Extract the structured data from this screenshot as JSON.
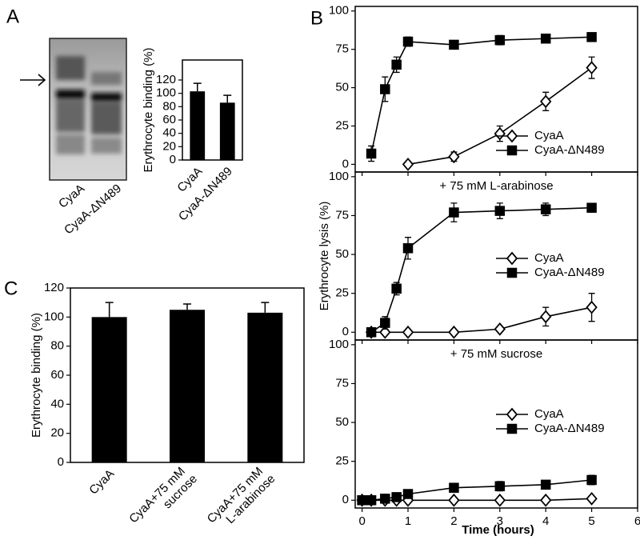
{
  "panel_labels": [
    "A",
    "B",
    "C"
  ],
  "blot": {
    "lanes": [
      "CyaA",
      "CyaA-ΔN489"
    ]
  },
  "chart_data": [
    {
      "type": "bar",
      "ylabel": "Erythrocyte binding (%)",
      "categories": [
        "CyaA",
        "CyaA-ΔN489"
      ],
      "values": [
        103,
        86
      ],
      "errors": [
        12,
        11
      ],
      "color": "#000000",
      "ylim": [
        0,
        150
      ],
      "yticks": [
        0,
        20,
        40,
        60,
        80,
        100,
        120
      ]
    },
    {
      "type": "line",
      "xlim": [
        -0.15,
        6
      ],
      "ylim": [
        -5,
        103
      ],
      "yticks": [
        0,
        25,
        50,
        75,
        100
      ],
      "series": [
        {
          "name": "CyaA",
          "color": "#000000",
          "marker": "diamond",
          "filled": false,
          "x": [
            1,
            2,
            3,
            4,
            5
          ],
          "values": [
            0,
            5,
            20,
            41,
            63
          ],
          "errors": [
            0,
            3,
            5,
            6,
            7
          ]
        },
        {
          "name": "CyaA-ΔN489",
          "color": "#000000",
          "marker": "square",
          "filled": true,
          "x": [
            0.2,
            0.5,
            0.75,
            1,
            2,
            3,
            4,
            5
          ],
          "values": [
            7,
            49,
            65,
            80,
            78,
            81,
            82,
            83
          ],
          "errors": [
            5,
            8,
            5,
            3,
            2,
            3,
            2,
            2
          ]
        }
      ]
    },
    {
      "type": "line",
      "annotation": "+ 75 mM L-arabinose",
      "ylabel": "Erythrocyte lysis (%)",
      "xlim": [
        -0.15,
        6
      ],
      "ylim": [
        -5,
        103
      ],
      "yticks": [
        0,
        25,
        50,
        75,
        100
      ],
      "series": [
        {
          "name": "CyaA",
          "color": "#000000",
          "marker": "diamond",
          "filled": false,
          "x": [
            0.2,
            0.5,
            1,
            2,
            3,
            4,
            5
          ],
          "values": [
            0,
            0,
            0,
            0,
            2,
            10,
            16
          ],
          "errors": [
            0,
            0,
            0,
            0,
            1,
            6,
            9
          ]
        },
        {
          "name": "CyaA-ΔN489",
          "color": "#000000",
          "marker": "square",
          "filled": true,
          "x": [
            0.2,
            0.5,
            0.75,
            1,
            2,
            3,
            4,
            5
          ],
          "values": [
            0,
            6,
            28,
            54,
            77,
            78,
            79,
            80
          ],
          "errors": [
            2,
            4,
            4,
            7,
            6,
            5,
            4,
            2
          ]
        }
      ]
    },
    {
      "type": "line",
      "annotation": "+ 75 mM sucrose",
      "xlabel": "Time (hours)",
      "xlim": [
        -0.15,
        6
      ],
      "ylim": [
        -5,
        103
      ],
      "xticks": [
        0,
        1,
        2,
        3,
        4,
        5,
        6
      ],
      "yticks": [
        0,
        25,
        50,
        75,
        100
      ],
      "series": [
        {
          "name": "CyaA",
          "color": "#000000",
          "marker": "diamond",
          "filled": false,
          "x": [
            0,
            0.2,
            0.5,
            0.75,
            1,
            2,
            3,
            4,
            5
          ],
          "values": [
            0,
            0,
            0,
            0,
            0,
            0,
            0,
            0,
            1
          ],
          "errors": [
            0,
            0,
            0,
            0,
            0,
            0,
            0,
            0,
            0
          ]
        },
        {
          "name": "CyaA-ΔN489",
          "color": "#000000",
          "marker": "square",
          "filled": true,
          "x": [
            0,
            0.2,
            0.5,
            0.75,
            1,
            2,
            3,
            4,
            5
          ],
          "values": [
            0,
            0,
            1,
            2,
            4,
            8,
            9,
            10,
            13
          ],
          "errors": [
            0,
            0,
            1,
            1,
            2,
            2,
            3,
            2,
            3
          ]
        }
      ]
    },
    {
      "type": "bar",
      "ylabel": "Erythrocyte binding (%)",
      "categories": [
        "CyaA",
        "CyaA+75 mM sucrose",
        "CyaA+75 mM L-arabinose"
      ],
      "values": [
        100,
        105,
        103
      ],
      "errors": [
        10,
        4,
        7
      ],
      "color": "#000000",
      "ylim": [
        0,
        120
      ],
      "yticks": [
        0,
        20,
        40,
        60,
        80,
        100,
        120
      ]
    }
  ]
}
